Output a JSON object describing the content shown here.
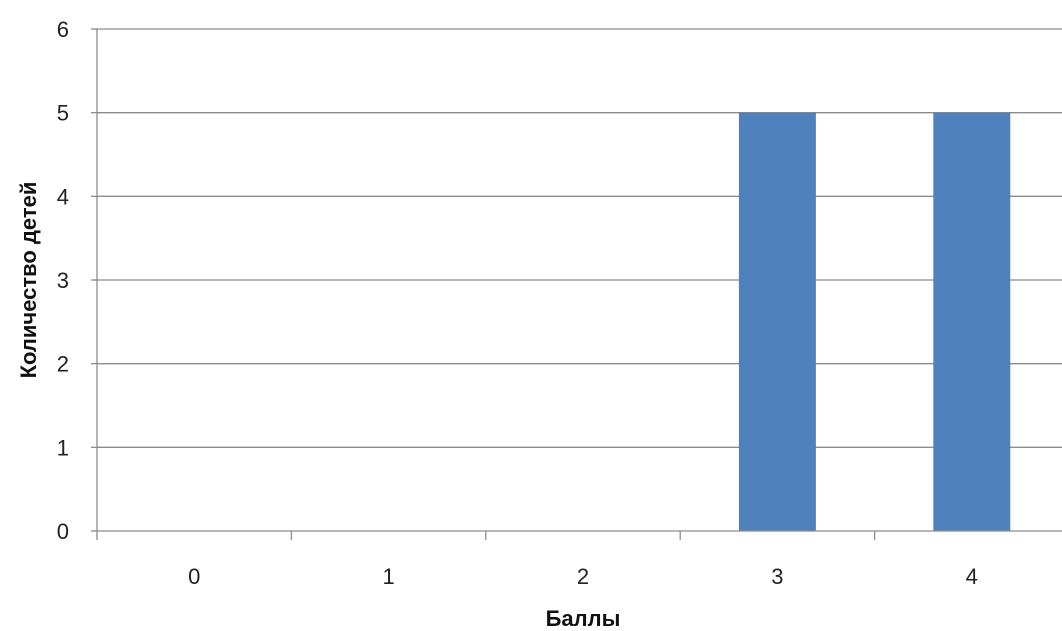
{
  "chart_data": {
    "type": "bar",
    "categories": [
      "0",
      "1",
      "2",
      "3",
      "4"
    ],
    "values": [
      0,
      0,
      0,
      5,
      5
    ],
    "title": "",
    "xlabel": "Баллы",
    "ylabel": "Количество детей",
    "ylim": [
      0,
      6
    ],
    "yticks": [
      "0",
      "1",
      "2",
      "3",
      "4",
      "5",
      "6"
    ],
    "grid": true,
    "legend": "none",
    "bar_color": "#4f81bd",
    "grid_color": "#8c8c8c"
  }
}
